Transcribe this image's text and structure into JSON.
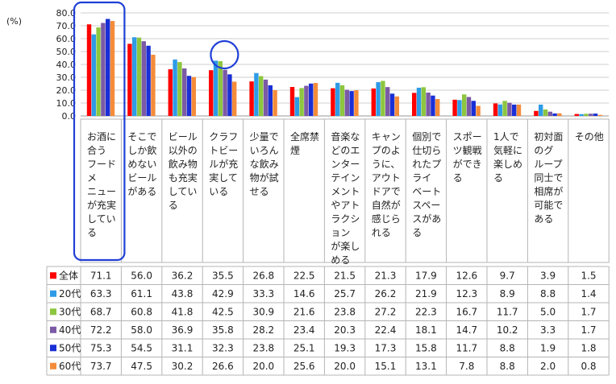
{
  "chart_data": {
    "type": "bar",
    "unit_label": "(%)",
    "ylim": [
      0,
      80
    ],
    "yticks": [
      "0.0",
      "10.0",
      "20.0",
      "30.0",
      "40.0",
      "50.0",
      "60.0",
      "70.0",
      "80.0"
    ],
    "grid": true,
    "legend": "table-left",
    "categories": [
      "お酒に合うフードメニューが充実している",
      "そこでしか飲めないビールがある",
      "ビール以外の飲み物も充実している",
      "クラフトビールが充実している",
      "少量でいろんな飲み物が試せる",
      "全席禁煙",
      "音楽などのエンターテインメントやアトラクションが楽しめる",
      "キャンプのように、アウトドアで自然が感じられる",
      "個別で仕切られたプライベートスペースがある",
      "スポーツ観戦ができる",
      "1人で気軽に楽しめる",
      "初対面のグループ同士で相席が可能である",
      "その他"
    ],
    "category_lines": [
      [
        "お酒に",
        "合う",
        "フード",
        "メ",
        "ニュー",
        "が充実",
        "してい",
        "る"
      ],
      [
        "そこで",
        "しか飲",
        "めない",
        "ビール",
        "がある"
      ],
      [
        "ビール",
        "以外の",
        "飲み物",
        "も充実",
        "してい",
        "る"
      ],
      [
        "クラフ",
        "トビー",
        "ルが充",
        "実して",
        "いる"
      ],
      [
        "少量で",
        "いろん",
        "な飲み",
        "物が試",
        "せる"
      ],
      [
        "全席禁",
        "煙"
      ],
      [
        "音楽な",
        "どのエ",
        "ンター",
        "テイン",
        "メント",
        "やアト",
        "ラクシ",
        "ョン",
        "が楽し",
        "める"
      ],
      [
        "キャン",
        "プのよ",
        "うに、",
        "アウト",
        "ドアで",
        "自然が",
        "感じら",
        "れる"
      ],
      [
        "個別で",
        "仕切ら",
        "れたプ",
        "ライ",
        "ベート",
        "スペー",
        "スがあ",
        "る"
      ],
      [
        "スポー",
        "ツ観戦",
        "ができ",
        "る"
      ],
      [
        "1人で",
        "気軽に",
        "楽しめ",
        "る"
      ],
      [
        "初対面",
        "のグ",
        "ループ",
        "同士で",
        "相席が",
        "可能で",
        "ある"
      ],
      [
        "その他"
      ]
    ],
    "series": [
      {
        "name": "全体",
        "color": "#ff0000",
        "values": [
          71.1,
          56.0,
          36.2,
          35.5,
          26.8,
          22.5,
          21.5,
          21.3,
          17.9,
          12.6,
          9.7,
          3.9,
          1.5
        ]
      },
      {
        "name": "20代",
        "color": "#2e9be6",
        "values": [
          63.3,
          61.1,
          43.8,
          42.9,
          33.3,
          14.6,
          25.7,
          26.2,
          21.9,
          12.3,
          8.9,
          8.8,
          1.4
        ]
      },
      {
        "name": "30代",
        "color": "#8dc63f",
        "values": [
          68.7,
          60.8,
          41.8,
          42.5,
          30.9,
          21.6,
          23.8,
          27.2,
          22.3,
          16.7,
          11.7,
          5.0,
          1.7
        ]
      },
      {
        "name": "40代",
        "color": "#7b5aa6",
        "values": [
          72.2,
          58.0,
          36.9,
          35.8,
          28.2,
          23.4,
          20.3,
          22.4,
          18.1,
          14.7,
          10.2,
          3.3,
          1.7
        ]
      },
      {
        "name": "50代",
        "color": "#1a2fd6",
        "values": [
          75.3,
          54.5,
          31.1,
          32.3,
          23.8,
          25.1,
          19.3,
          17.3,
          15.8,
          11.7,
          8.8,
          1.9,
          1.8
        ]
      },
      {
        "name": "60代",
        "color": "#f58c3a",
        "values": [
          73.7,
          47.5,
          30.2,
          26.6,
          20.0,
          25.6,
          20.0,
          15.1,
          13.1,
          7.8,
          8.8,
          2.0,
          0.8
        ]
      }
    ],
    "highlights": [
      {
        "type": "rounded-rect",
        "category_index": 0,
        "color": "#1f3fd6"
      },
      {
        "type": "circle",
        "category_index": 3,
        "color": "#1f3fd6"
      }
    ]
  }
}
